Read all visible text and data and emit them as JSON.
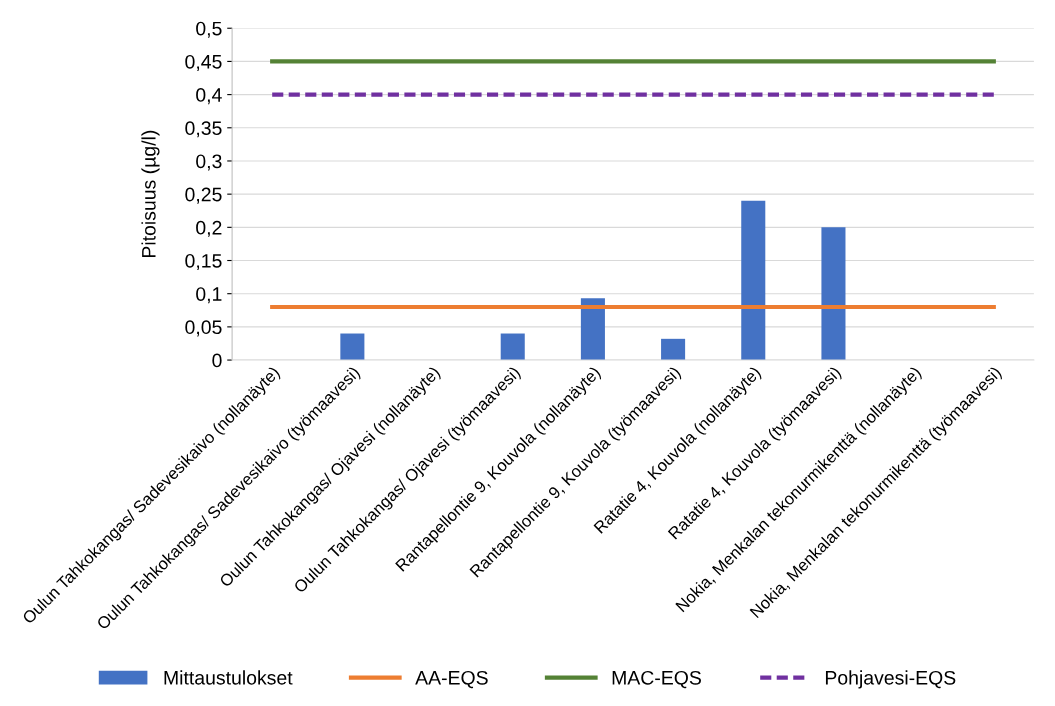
{
  "chart_data": {
    "type": "bar",
    "ylabel": "Pitoisuus (µg/l)",
    "categories": [
      "Oulun Tahkokangas/ Sadevesikaivo (nollanäyte)",
      "Oulun Tahkokangas/ Sadevesikaivo (työmaavesi)",
      "Oulun Tahkokangas/ Ojavesi (nollanäyte)",
      "Oulun Tahkokangas/ Ojavesi (työmaavesi)",
      "Rantapellontie 9, Kouvola (nollanäyte)",
      "Rantapellontie 9, Kouvola (työmaavesi)",
      "Ratatie 4, Kouvola (nollanäyte)",
      "Ratatie 4, Kouvola (työmaavesi)",
      "Nokia, Menkalan tekonurmikenttä (nollanäyte)",
      "Nokia, Menkalan tekonurmikenttä (työmaavesi)"
    ],
    "series": [
      {
        "name": "Mittaustulokset",
        "color": "#4472c4",
        "values": [
          null,
          0.04,
          null,
          0.04,
          0.093,
          0.032,
          0.24,
          0.2,
          null,
          null
        ]
      },
      {
        "name": "AA-EQS",
        "type": "line",
        "color": "#ed7d31",
        "line_style": "solid",
        "values": [
          0.08,
          0.08,
          0.08,
          0.08,
          0.08,
          0.08,
          0.08,
          0.08,
          0.08,
          0.08
        ]
      },
      {
        "name": "MAC-EQS",
        "type": "line",
        "color": "#548235",
        "line_style": "solid",
        "values": [
          0.45,
          0.45,
          0.45,
          0.45,
          0.45,
          0.45,
          0.45,
          0.45,
          0.45,
          0.45
        ]
      },
      {
        "name": "Pohjavesi-EQS",
        "type": "line",
        "color": "#7030a0",
        "line_style": "dashed",
        "values": [
          0.4,
          0.4,
          0.4,
          0.4,
          0.4,
          0.4,
          0.4,
          0.4,
          0.4,
          0.4
        ]
      }
    ],
    "ylim": [
      0,
      0.5
    ],
    "yticks": [
      0,
      {
        "value": 0.05,
        "label": "0,05"
      },
      {
        "value": 0.1,
        "label": "0,1"
      },
      {
        "value": 0.15,
        "label": "0,15"
      },
      {
        "value": 0.2,
        "label": "0,2"
      },
      {
        "value": 0.25,
        "label": "0,25"
      },
      {
        "value": 0.3,
        "label": "0,3"
      },
      {
        "value": 0.35,
        "label": "0,35"
      },
      {
        "value": 0.4,
        "label": "0,4"
      },
      {
        "value": 0.45,
        "label": "0,45"
      },
      {
        "value": 0.5,
        "label": "0,5"
      }
    ],
    "grid": "y",
    "legend": "bottom"
  }
}
